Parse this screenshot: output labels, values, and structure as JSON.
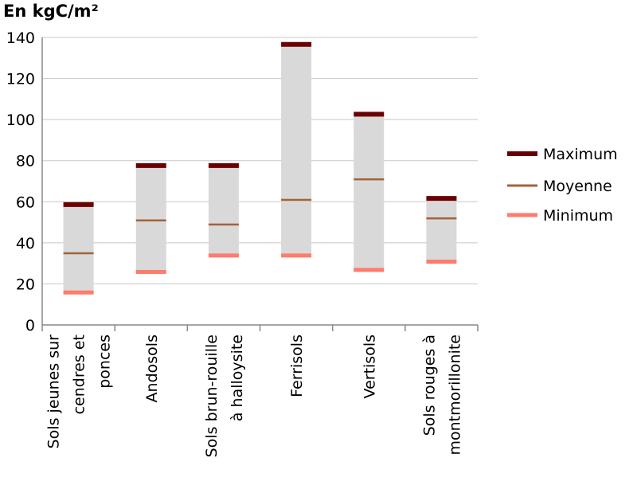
{
  "chart_data": {
    "type": "bar",
    "title": "En kgC/m²",
    "xlabel": "",
    "ylabel": "",
    "ylim": [
      0,
      140
    ],
    "yticks": [
      0,
      20,
      40,
      60,
      80,
      100,
      120,
      140
    ],
    "grid": true,
    "legend_position": "right",
    "categories": [
      [
        "Sols jeunes sur",
        "cendres et",
        "ponces"
      ],
      [
        "Andosols"
      ],
      [
        "Sols brun-rouille",
        "à halloysite"
      ],
      [
        "Ferrisols"
      ],
      [
        "Vertisols"
      ],
      [
        "Sols rouges à",
        "montmorillonite"
      ]
    ],
    "series": [
      {
        "name": "Maximum",
        "values": [
          59,
          78,
          78,
          137,
          103,
          62
        ]
      },
      {
        "name": "Moyenne",
        "values": [
          35,
          51,
          49,
          61,
          71,
          52
        ]
      },
      {
        "name": "Minimum",
        "values": [
          16,
          26,
          34,
          34,
          27,
          31
        ]
      }
    ],
    "colors": {
      "range": "#d9d9d9",
      "maximum": "#6b0000",
      "moyenne": "#a0643a",
      "minimum": "#ff7b6b",
      "grid": "#c8c8c8",
      "axis": "#888888"
    }
  }
}
